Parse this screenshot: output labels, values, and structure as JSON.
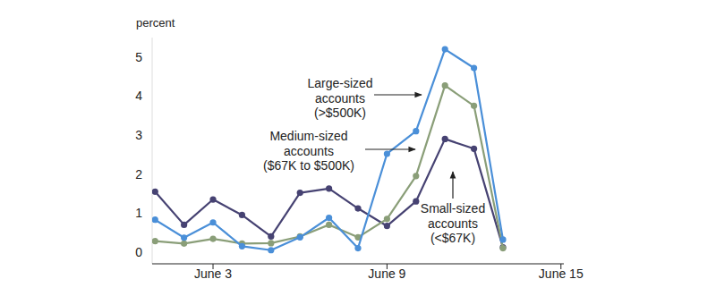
{
  "chart_data": {
    "type": "line",
    "y_label": "percent",
    "x": [
      1,
      2,
      3,
      4,
      5,
      6,
      7,
      8,
      9,
      10,
      11,
      12,
      13
    ],
    "xlim": [
      0.9,
      15.1
    ],
    "xticks": [
      {
        "value": 3,
        "label": "June 3"
      },
      {
        "value": 9,
        "label": "June 9"
      },
      {
        "value": 15,
        "label": "June 15"
      }
    ],
    "ylim": [
      -0.3,
      5.5
    ],
    "yticks": [
      0,
      1,
      2,
      3,
      4,
      5
    ],
    "grid": false,
    "marker": "circle",
    "series": [
      {
        "name": "Large-sized accounts (>$500K)",
        "color": "#4a8fd8",
        "values": [
          0.83,
          0.37,
          0.76,
          0.15,
          0.05,
          0.38,
          0.88,
          0.1,
          2.52,
          3.1,
          5.2,
          4.72,
          0.32
        ]
      },
      {
        "name": "Medium-sized accounts ($67K to $500K)",
        "color": "#8a9e78",
        "values": [
          0.28,
          0.22,
          0.34,
          0.22,
          0.23,
          0.4,
          0.7,
          0.38,
          0.85,
          1.95,
          4.27,
          3.75,
          0.1
        ]
      },
      {
        "name": "Small-sized accounts (<$67K)",
        "color": "#464272",
        "values": [
          1.55,
          0.7,
          1.35,
          0.95,
          0.4,
          1.52,
          1.63,
          1.12,
          0.67,
          1.3,
          2.9,
          2.65,
          0.12
        ]
      }
    ],
    "annotations": [
      {
        "lines": [
          "Large-sized",
          "accounts",
          "(>$500K)"
        ]
      },
      {
        "lines": [
          "Medium-sized",
          "accounts",
          "($67K to $500K)"
        ]
      },
      {
        "lines": [
          "Small-sized",
          "accounts",
          "(<$67K)"
        ]
      }
    ]
  }
}
